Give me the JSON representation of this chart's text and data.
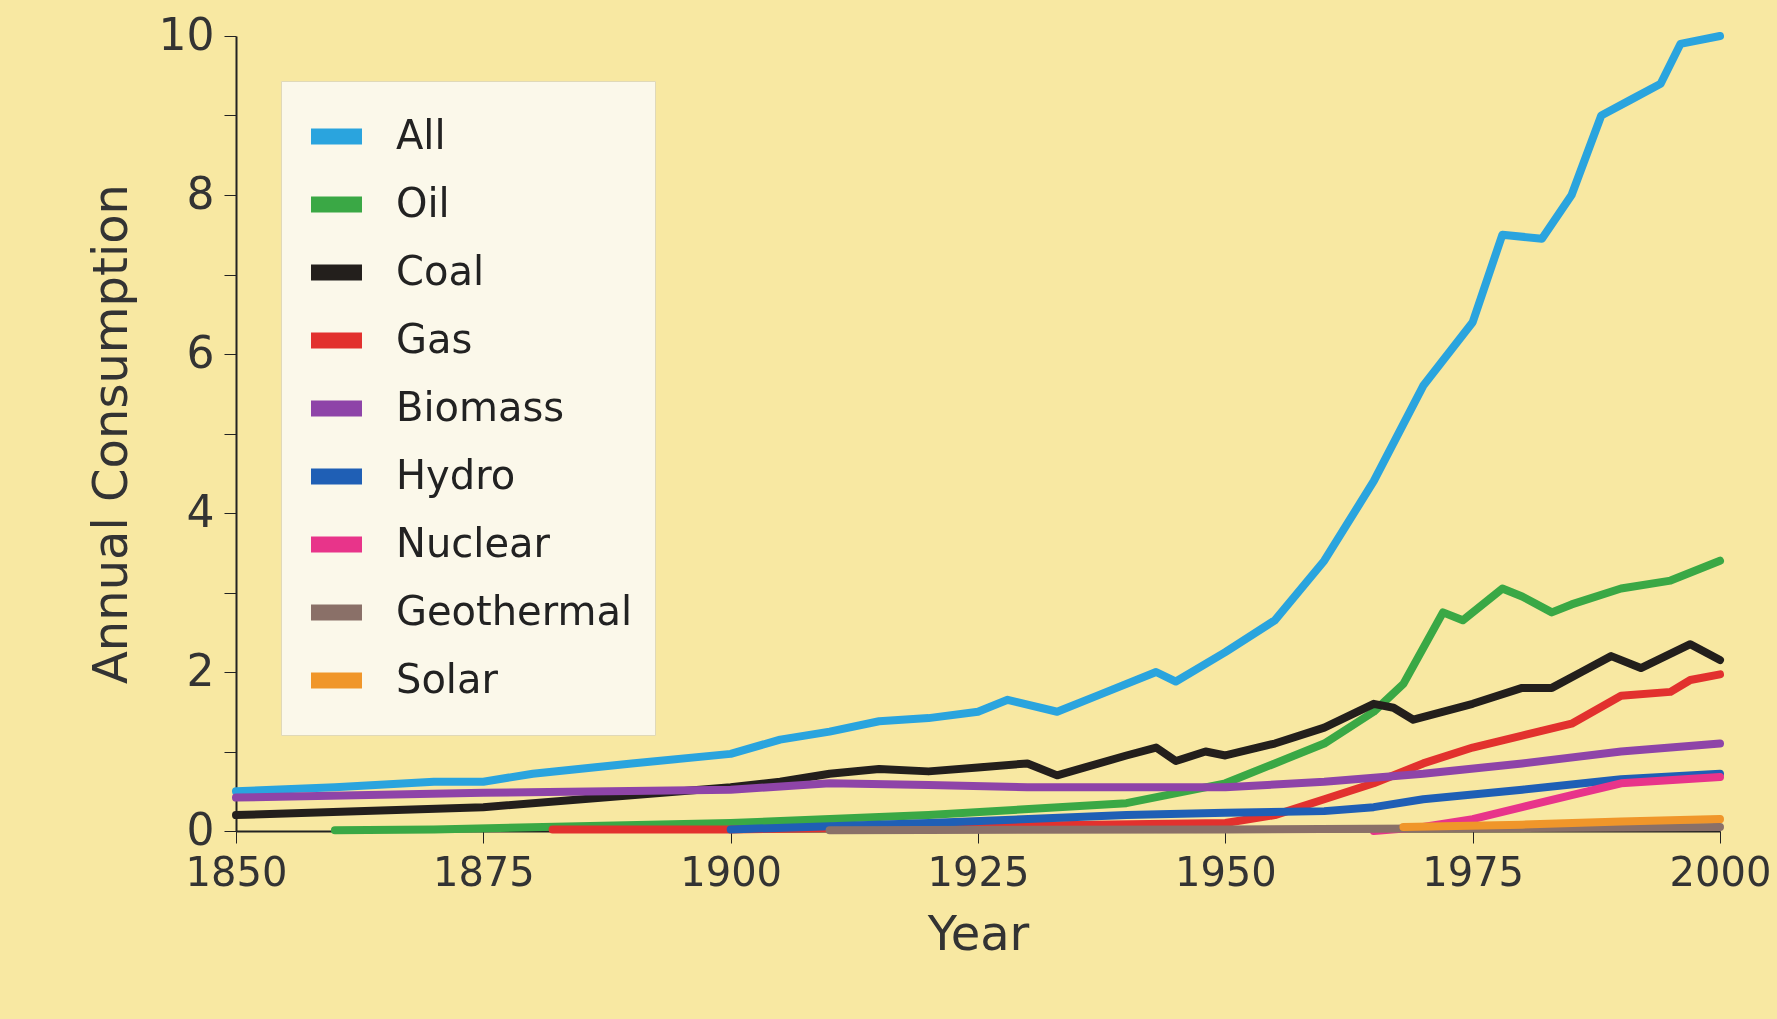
{
  "chart_data": {
    "type": "line",
    "xlabel": "Year",
    "ylabel": "Annual Consumption",
    "xlim": [
      1850,
      2000
    ],
    "ylim": [
      0,
      10
    ],
    "xticks": [
      1850,
      1875,
      1900,
      1925,
      1950,
      1975,
      2000
    ],
    "yticks": [
      0,
      {
        "value": 1,
        "label": null
      },
      2,
      {
        "value": 3,
        "label": null
      },
      4,
      {
        "value": 5,
        "label": null
      },
      6,
      {
        "value": 7,
        "label": null
      },
      8,
      {
        "value": 9,
        "label": null
      },
      10
    ],
    "grid": false,
    "legend": "top left",
    "line_style": "solid",
    "marker": "none",
    "series": [
      {
        "name": "All",
        "color": "#2aa4de",
        "x": [
          1850,
          1860,
          1870,
          1875,
          1880,
          1890,
          1900,
          1905,
          1910,
          1915,
          1920,
          1925,
          1928,
          1933,
          1937,
          1943,
          1945,
          1950,
          1955,
          1960,
          1965,
          1970,
          1975,
          1978,
          1982,
          1985,
          1988,
          1991,
          1994,
          1996,
          2000
        ],
        "values": [
          0.5,
          0.55,
          0.62,
          0.62,
          0.72,
          0.85,
          0.97,
          1.15,
          1.25,
          1.38,
          1.42,
          1.5,
          1.65,
          1.5,
          1.7,
          2.0,
          1.88,
          2.25,
          2.65,
          3.4,
          4.4,
          5.6,
          6.4,
          7.5,
          7.45,
          8.0,
          9.0,
          9.2,
          9.4,
          9.9,
          10.0
        ]
      },
      {
        "name": "Oil",
        "color": "#3aa845",
        "x": [
          1860,
          1870,
          1900,
          1920,
          1940,
          1950,
          1955,
          1960,
          1965,
          1968,
          1972,
          1974,
          1978,
          1980,
          1983,
          1985,
          1990,
          1995,
          2000
        ],
        "values": [
          0.01,
          0.02,
          0.1,
          0.2,
          0.35,
          0.6,
          0.85,
          1.1,
          1.5,
          1.85,
          2.75,
          2.65,
          3.05,
          2.95,
          2.75,
          2.85,
          3.05,
          3.15,
          3.4
        ]
      },
      {
        "name": "Coal",
        "color": "#231f1c",
        "x": [
          1850,
          1875,
          1900,
          1905,
          1910,
          1915,
          1920,
          1925,
          1930,
          1933,
          1940,
          1943,
          1945,
          1948,
          1950,
          1955,
          1960,
          1965,
          1967,
          1969,
          1975,
          1980,
          1983,
          1986,
          1989,
          1992,
          1997,
          2000
        ],
        "values": [
          0.2,
          0.3,
          0.55,
          0.62,
          0.72,
          0.78,
          0.75,
          0.8,
          0.85,
          0.7,
          0.95,
          1.05,
          0.88,
          1.0,
          0.95,
          1.1,
          1.3,
          1.6,
          1.55,
          1.4,
          1.6,
          1.8,
          1.8,
          2.0,
          2.2,
          2.05,
          2.35,
          2.15
        ]
      },
      {
        "name": "Gas",
        "color": "#e2312e",
        "x": [
          1882,
          1900,
          1920,
          1950,
          1955,
          1960,
          1965,
          1970,
          1975,
          1980,
          1985,
          1990,
          1995,
          1997,
          2000
        ],
        "values": [
          0.02,
          0.02,
          0.05,
          0.1,
          0.2,
          0.4,
          0.6,
          0.85,
          1.05,
          1.2,
          1.35,
          1.7,
          1.75,
          1.9,
          1.97
        ]
      },
      {
        "name": "Biomass",
        "color": "#8e44a8",
        "x": [
          1850,
          1875,
          1900,
          1910,
          1920,
          1930,
          1950,
          1960,
          1970,
          1980,
          1990,
          2000
        ],
        "values": [
          0.42,
          0.48,
          0.52,
          0.6,
          0.58,
          0.55,
          0.55,
          0.62,
          0.72,
          0.85,
          1.0,
          1.1
        ]
      },
      {
        "name": "Hydro",
        "color": "#1f5fb5",
        "x": [
          1900,
          1920,
          1940,
          1950,
          1960,
          1965,
          1970,
          1980,
          1990,
          2000
        ],
        "values": [
          0.02,
          0.1,
          0.2,
          0.23,
          0.25,
          0.3,
          0.4,
          0.52,
          0.65,
          0.72
        ]
      },
      {
        "name": "Nuclear",
        "color": "#e8348a",
        "x": [
          1965,
          1970,
          1975,
          1980,
          1985,
          1990,
          2000
        ],
        "values": [
          0.0,
          0.05,
          0.15,
          0.3,
          0.45,
          0.6,
          0.68
        ]
      },
      {
        "name": "Geothermal",
        "color": "#8a7068",
        "x": [
          1910,
          1950,
          1970,
          2000
        ],
        "values": [
          0.01,
          0.02,
          0.03,
          0.05
        ]
      },
      {
        "name": "Solar",
        "color": "#f0962a",
        "x": [
          1968,
          1980,
          1990,
          2000
        ],
        "values": [
          0.05,
          0.08,
          0.12,
          0.15
        ]
      }
    ]
  }
}
